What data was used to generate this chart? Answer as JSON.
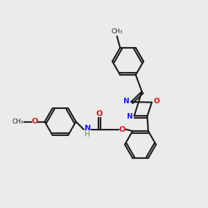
{
  "background_color": "#ebebeb",
  "bond_color": "#1a1a1a",
  "N_color": "#1919ff",
  "O_color": "#dd1111",
  "H_color": "#3a9a3a",
  "figsize": [
    3.0,
    3.0
  ],
  "dpi": 100,
  "xlim": [
    0,
    10
  ],
  "ylim": [
    0,
    10
  ]
}
